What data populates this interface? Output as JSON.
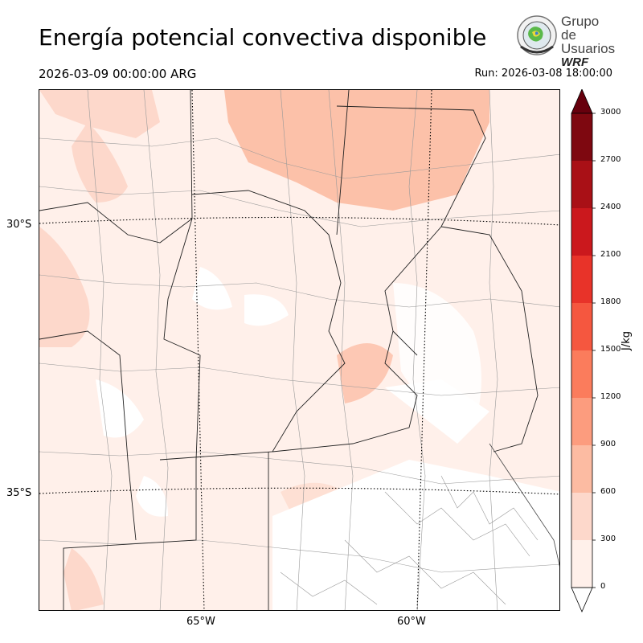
{
  "header": {
    "title": "Energía potencial convectiva disponible",
    "valid_time": "2026-03-09 00:00:00 ARG",
    "run": "Run: 2026-03-08 18:00:00"
  },
  "logo": {
    "line1": "Grupo de",
    "line2": "Usuarios",
    "line3": "WRF"
  },
  "map": {
    "lat_labels": [
      "30°S",
      "35°S"
    ],
    "lon_labels": [
      "65°W",
      "60°W"
    ]
  },
  "colorbar": {
    "unit": "J/kg",
    "ticks": [
      "0",
      "300",
      "600",
      "900",
      "1200",
      "1500",
      "1800",
      "2100",
      "2400",
      "2700",
      "3000"
    ],
    "colors": [
      "#fff0ea",
      "#fdd8cb",
      "#fcbba2",
      "#fc9c7e",
      "#fb7c5c",
      "#f5573f",
      "#e83329",
      "#cb181d",
      "#a91016",
      "#7e0810"
    ],
    "extend_color": "#67000d"
  }
}
